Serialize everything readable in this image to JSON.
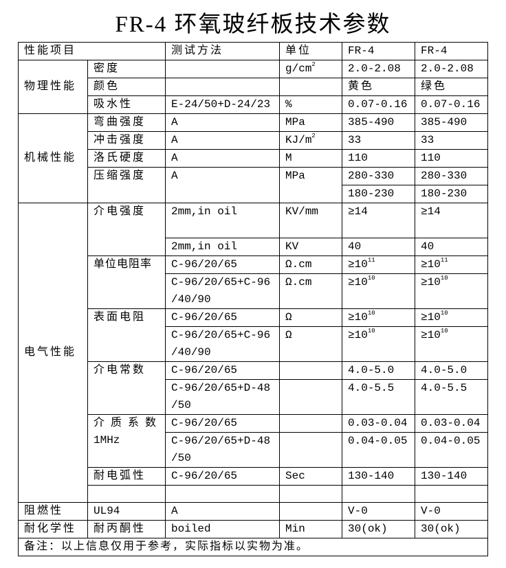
{
  "title": "FR-4 环氧玻纤板技术参数",
  "header": {
    "item": "性能项目",
    "method": "测试方法",
    "unit": "单位",
    "col1": "FR-4",
    "col2": "FR-4"
  },
  "groups": {
    "physical": "物理性能",
    "mechanical": "机械性能",
    "electrical": "电气性能",
    "flame": "阻燃性",
    "chemical": "耐化学性"
  },
  "rows": [
    {
      "name": "密度",
      "method": "",
      "unit": "g/cm",
      "unit_sup": "2",
      "v1": "2.0-2.08",
      "v2": "2.0-2.08"
    },
    {
      "name": "颜色",
      "method": "",
      "unit": "",
      "v1": "黄色",
      "v2": "绿色"
    },
    {
      "name": "吸水性",
      "method": "E-24/50+D-24/23",
      "unit": "%",
      "v1": "0.07-0.16",
      "v2": "0.07-0.16"
    },
    {
      "name": "弯曲强度",
      "method": "A",
      "unit": "MPa",
      "v1": "385-490",
      "v2": "385-490"
    },
    {
      "name": "冲击强度",
      "method": "A",
      "unit": "KJ/m",
      "unit_sup": "2",
      "v1": "33",
      "v2": "33"
    },
    {
      "name": "洛氏硬度",
      "method": "A",
      "unit": "M",
      "v1": "110",
      "v2": "110"
    },
    {
      "name": "压缩强度",
      "method": "A",
      "unit": "MPa",
      "v1": "280-330",
      "v2": "280-330"
    },
    {
      "v1": "180-230",
      "v2": "180-230"
    },
    {
      "name": "介电强度",
      "method": "2mm,in oil",
      "unit": "KV/mm",
      "v1": "≥14",
      "v2": "≥14"
    },
    {
      "method": "2mm,in oil",
      "unit": "KV",
      "v1": "40",
      "v2": "40"
    },
    {
      "name": "单位电阻率",
      "method": "C-96/20/65",
      "unit": "Ω.cm",
      "v1": "≥10",
      "v1_sup": "11",
      "v2": "≥10",
      "v2_sup": "11"
    },
    {
      "method": "C-96/20/65+C-96\n/40/90",
      "unit": "Ω.cm",
      "v1": "≥10",
      "v1_sup": "10",
      "v2": "≥10",
      "v2_sup": "10"
    },
    {
      "name": "表面电阻",
      "method": "C-96/20/65",
      "unit": "Ω",
      "v1": "≥10",
      "v1_sup": "10",
      "v2": "≥10",
      "v2_sup": "10"
    },
    {
      "method": "C-96/20/65+C-96\n/40/90",
      "unit": "Ω",
      "v1": "≥10",
      "v1_sup": "10",
      "v2": "≥10",
      "v2_sup": "10"
    },
    {
      "name": "介电常数",
      "method": "C-96/20/65",
      "unit": "",
      "v1": "4.0-5.0",
      "v2": "4.0-5.0"
    },
    {
      "method": "C-96/20/65+D-48\n/50",
      "unit": "",
      "v1": "4.0-5.5",
      "v2": "4.0-5.5"
    },
    {
      "name": "介质系数",
      "name2": "1MHz",
      "method": "C-96/20/65",
      "unit": "",
      "v1": "0.03-0.04",
      "v2": "0.03-0.04"
    },
    {
      "method": "C-96/20/65+D-48\n/50",
      "unit": "",
      "v1": "0.04-0.05",
      "v2": "0.04-0.05"
    },
    {
      "name": "耐电弧性",
      "method": "C-96/20/65",
      "unit": "Sec",
      "v1": "130-140",
      "v2": "130-140"
    },
    {
      "name": "",
      "method": "",
      "unit": "",
      "v1": "",
      "v2": ""
    },
    {
      "name": "UL94",
      "method": "A",
      "unit": "",
      "v1": "V-0",
      "v2": "V-0"
    },
    {
      "name": "耐丙酮性",
      "method": "boiled",
      "unit": "Min",
      "v1": "30(ok)",
      "v2": "30(ok)"
    }
  ],
  "note": "备注：以上信息仅用于参考，实际指标以实物为准。"
}
